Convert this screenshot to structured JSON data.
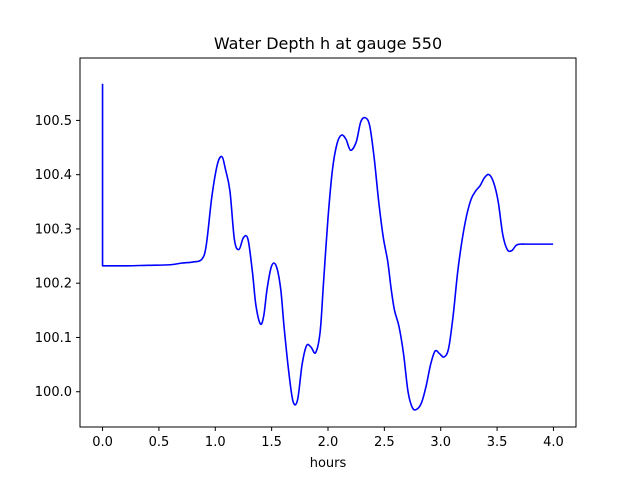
{
  "chart_data": {
    "type": "line",
    "title": "Water Depth h at gauge 550",
    "xlabel": "hours",
    "ylabel": "",
    "xlim": [
      -0.2,
      4.2
    ],
    "ylim": [
      99.935,
      100.615
    ],
    "xticks": [
      0.0,
      0.5,
      1.0,
      1.5,
      2.0,
      2.5,
      3.0,
      3.5,
      4.0
    ],
    "xtick_labels": [
      "0.0",
      "0.5",
      "1.0",
      "1.5",
      "2.0",
      "2.5",
      "3.0",
      "3.5",
      "4.0"
    ],
    "yticks": [
      100.0,
      100.1,
      100.2,
      100.3,
      100.4,
      100.5
    ],
    "ytick_labels": [
      "100.0",
      "100.1",
      "100.2",
      "100.3",
      "100.4",
      "100.5"
    ],
    "grid": false,
    "legend": "none",
    "series": [
      {
        "color": "#0000ff",
        "x": [
          0.0,
          0.0,
          0.0,
          0.2,
          0.4,
          0.6,
          0.7,
          0.8,
          0.88,
          0.92,
          0.97,
          1.02,
          1.06,
          1.09,
          1.13,
          1.17,
          1.21,
          1.25,
          1.29,
          1.33,
          1.36,
          1.4,
          1.43,
          1.46,
          1.5,
          1.54,
          1.58,
          1.61,
          1.65,
          1.69,
          1.73,
          1.77,
          1.81,
          1.85,
          1.89,
          1.93,
          1.96,
          2.0,
          2.04,
          2.08,
          2.12,
          2.16,
          2.2,
          2.25,
          2.29,
          2.33,
          2.37,
          2.41,
          2.45,
          2.49,
          2.53,
          2.56,
          2.59,
          2.63,
          2.67,
          2.71,
          2.75,
          2.79,
          2.83,
          2.87,
          2.91,
          2.95,
          2.99,
          3.03,
          3.07,
          3.11,
          3.15,
          3.19,
          3.23,
          3.27,
          3.31,
          3.35,
          3.39,
          3.43,
          3.47,
          3.51,
          3.55,
          3.59,
          3.63,
          3.67,
          3.71,
          3.75,
          3.79,
          3.83,
          3.87,
          3.91,
          3.95,
          3.99
        ],
        "y": [
          100.566,
          100.235,
          100.232,
          100.232,
          100.233,
          100.234,
          100.237,
          100.239,
          100.244,
          100.27,
          100.36,
          100.42,
          100.433,
          100.41,
          100.37,
          100.28,
          100.262,
          100.284,
          100.281,
          100.22,
          100.16,
          100.125,
          100.14,
          100.19,
          100.232,
          100.232,
          100.19,
          100.12,
          100.04,
          99.982,
          99.985,
          100.05,
          100.085,
          100.082,
          100.072,
          100.11,
          100.2,
          100.32,
          100.41,
          100.457,
          100.473,
          100.465,
          100.445,
          100.46,
          100.497,
          100.505,
          100.49,
          100.43,
          100.35,
          100.285,
          100.24,
          100.19,
          100.15,
          100.12,
          100.07,
          100.0,
          99.97,
          99.968,
          99.98,
          100.01,
          100.05,
          100.075,
          100.07,
          100.064,
          100.08,
          100.14,
          100.22,
          100.28,
          100.325,
          100.355,
          100.37,
          100.38,
          100.395,
          100.4,
          100.385,
          100.35,
          100.29,
          100.262,
          100.26,
          100.27,
          100.272,
          100.272,
          100.272,
          100.272,
          100.272,
          100.272,
          100.272,
          100.272
        ]
      }
    ]
  }
}
